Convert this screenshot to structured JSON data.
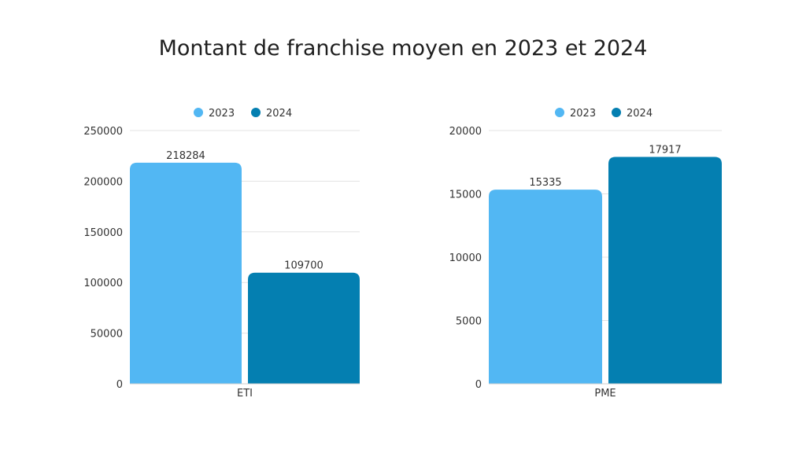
{
  "title": "Montant de franchise moyen en 2023 et 2024",
  "colors": {
    "2023": "#52b7f3",
    "2024": "#047fb1",
    "grid": "#e3e3e3"
  },
  "chart_data": [
    {
      "type": "bar",
      "categories": [
        "ETI"
      ],
      "series": [
        {
          "name": "2023",
          "values": [
            218284
          ]
        },
        {
          "name": "2024",
          "values": [
            109700
          ]
        }
      ],
      "ylim": [
        0,
        250000
      ],
      "yticks": [
        0,
        50000,
        100000,
        150000,
        200000,
        250000
      ],
      "grid": true,
      "legend": "top-center"
    },
    {
      "type": "bar",
      "categories": [
        "PME"
      ],
      "series": [
        {
          "name": "2023",
          "values": [
            15335
          ]
        },
        {
          "name": "2024",
          "values": [
            17917
          ]
        }
      ],
      "ylim": [
        0,
        20000
      ],
      "yticks": [
        0,
        5000,
        10000,
        15000,
        20000
      ],
      "grid": true,
      "legend": "top-center"
    }
  ]
}
